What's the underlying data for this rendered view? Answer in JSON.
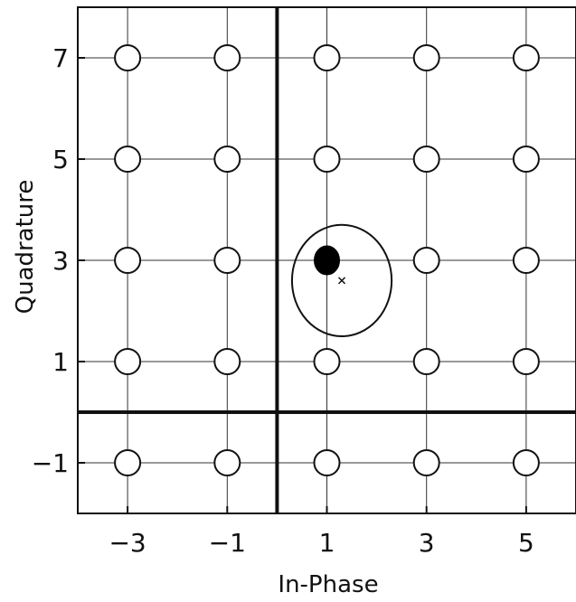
{
  "chart_data": {
    "type": "scatter",
    "title": "",
    "xlabel": "In-Phase",
    "ylabel": "Quadrature",
    "xlim": [
      -4,
      6
    ],
    "ylim": [
      -2,
      8
    ],
    "x_ticks": [
      -3,
      -1,
      1,
      3,
      5
    ],
    "y_ticks": [
      -1,
      1,
      3,
      5,
      7
    ],
    "x_tick_labels": [
      "−3",
      "−1",
      "1",
      "3",
      "5"
    ],
    "y_tick_labels": [
      "−1",
      "1",
      "3",
      "5",
      "7"
    ],
    "grid": true,
    "bold_axes": {
      "x": 0,
      "y": 0
    },
    "series": [
      {
        "marker": "open-circle",
        "points": [
          [
            -3,
            7
          ],
          [
            -1,
            7
          ],
          [
            1,
            7
          ],
          [
            3,
            7
          ],
          [
            5,
            7
          ],
          [
            -3,
            5
          ],
          [
            -1,
            5
          ],
          [
            1,
            5
          ],
          [
            3,
            5
          ],
          [
            5,
            5
          ],
          [
            -3,
            3
          ],
          [
            -1,
            3
          ],
          [
            3,
            3
          ],
          [
            5,
            3
          ],
          [
            -3,
            1
          ],
          [
            -1,
            1
          ],
          [
            1,
            1
          ],
          [
            3,
            1
          ],
          [
            5,
            1
          ],
          [
            -3,
            -1
          ],
          [
            -1,
            -1
          ],
          [
            1,
            -1
          ],
          [
            3,
            -1
          ],
          [
            5,
            -1
          ]
        ]
      },
      {
        "marker": "filled-circle",
        "points": [
          [
            1,
            3
          ]
        ]
      },
      {
        "marker": "x",
        "points": [
          [
            1.3,
            2.6
          ]
        ]
      }
    ],
    "annotations": [
      {
        "type": "ellipse",
        "center": [
          1.3,
          2.6
        ],
        "rx": 1,
        "ry": 1.1
      }
    ]
  }
}
